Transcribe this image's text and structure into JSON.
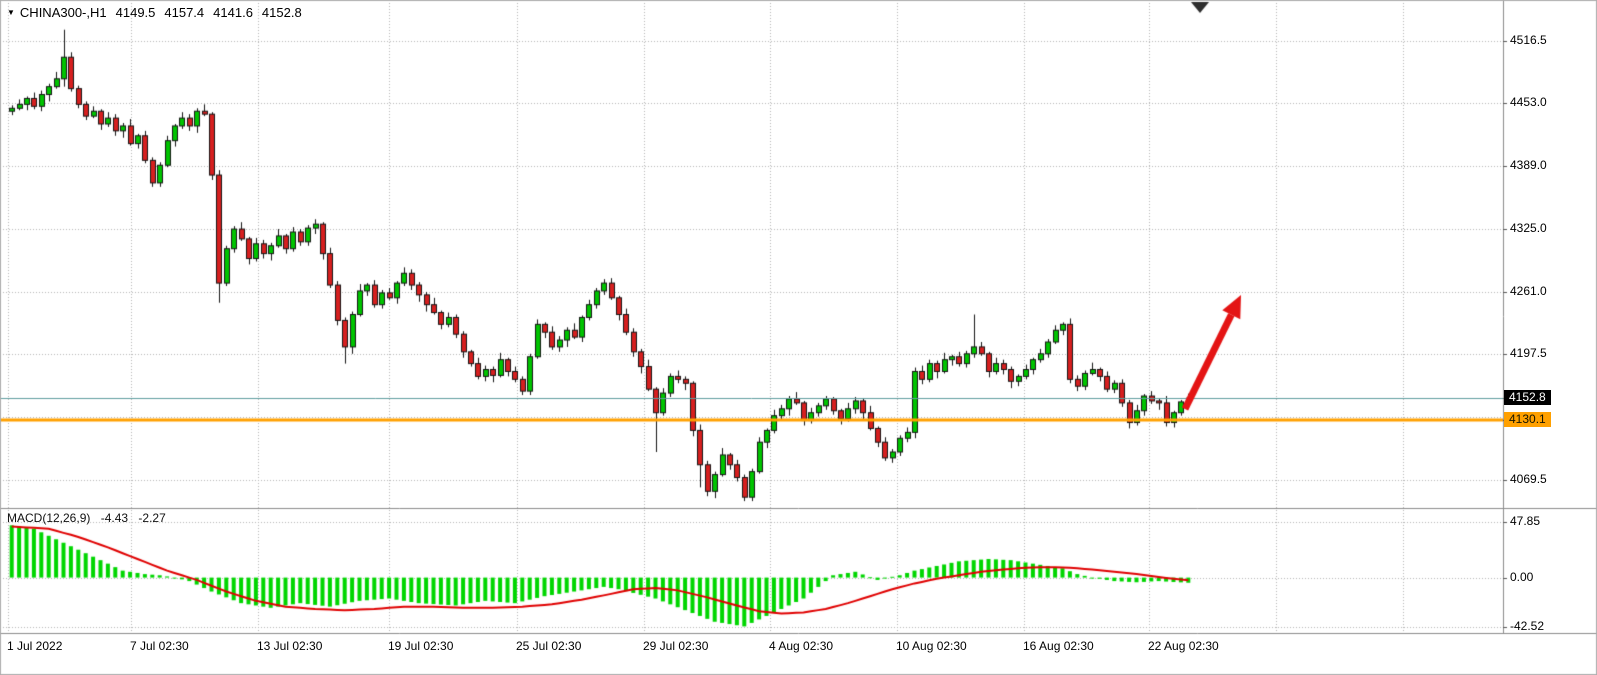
{
  "header": {
    "collapse_icon": "▼",
    "title": "CHINA300-,H1",
    "open": "4149.5",
    "high": "4157.4",
    "low": "4141.6",
    "close": "4152.8"
  },
  "decor": {
    "shift_marker_color": "#2e2e2e"
  },
  "chart_data": {
    "type": "candlestick",
    "symbol": "CHINA300-",
    "timeframe": "H1",
    "title": "CHINA300-,H1",
    "ohlc_current": {
      "open": 4149.5,
      "high": 4157.4,
      "low": 4141.6,
      "close": 4152.8
    },
    "price_axis_ticks": [
      "4516.5",
      "4453.0",
      "4389.0",
      "4325.0",
      "4261.0",
      "4197.5",
      "4069.5"
    ],
    "price_grid": [
      4516.5,
      4453.0,
      4389.0,
      4325.0,
      4261.0,
      4197.5,
      4134.0,
      4069.5
    ],
    "ylim": [
      4043,
      4558
    ],
    "bid_line": {
      "price": 4152.8,
      "label": "4152.8"
    },
    "hline": {
      "price": 4130.1,
      "label": "4130.1",
      "color": "#ffa000",
      "thickness": 3
    },
    "time_ticks": [
      {
        "label": "1 Jul 2022",
        "pos": 0
      },
      {
        "label": "7 Jul 02:30",
        "pos": 0.1039
      },
      {
        "label": "13 Jul 02:30",
        "pos": 0.2111
      },
      {
        "label": "19 Jul 02:30",
        "pos": 0.3218
      },
      {
        "label": "25 Jul 02:30",
        "pos": 0.4299
      },
      {
        "label": "29 Jul 02:30",
        "pos": 0.5372
      },
      {
        "label": "4 Aug 02:30",
        "pos": 0.6436
      },
      {
        "label": "10 Aug 02:30",
        "pos": 0.7508
      },
      {
        "label": "16 Aug 02:30",
        "pos": 0.8581
      },
      {
        "label": "22 Aug 02:30",
        "pos": 0.9637
      }
    ],
    "future_grid_pos": [
      1.0709,
      1.1782
    ],
    "colors": {
      "background": "#ffffff",
      "grid": "#b4b4b4",
      "up": "#00c400",
      "down": "#d61f1f",
      "outline": "#141414",
      "wick": "#141414",
      "hist": "#00d600",
      "signal": "#e00000",
      "bid_line": "#5f9ea0",
      "separator": "#8c8c8c",
      "axis_text": "#000000"
    },
    "candles": [
      [
        4445,
        4451,
        4441,
        4448
      ],
      [
        4448,
        4457,
        4446,
        4452
      ],
      [
        4452,
        4460,
        4446,
        4458
      ],
      [
        4458,
        4464,
        4447,
        4450
      ],
      [
        4450,
        4466,
        4445,
        4462
      ],
      [
        4462,
        4473,
        4455,
        4470
      ],
      [
        4470,
        4485,
        4468,
        4478
      ],
      [
        4478,
        4528,
        4470,
        4500
      ],
      [
        4500,
        4505,
        4465,
        4468
      ],
      [
        4468,
        4471,
        4448,
        4452
      ],
      [
        4452,
        4455,
        4436,
        4440
      ],
      [
        4440,
        4450,
        4438,
        4445
      ],
      [
        4445,
        4447,
        4426,
        4432
      ],
      [
        4432,
        4444,
        4429,
        4438
      ],
      [
        4438,
        4442,
        4420,
        4425
      ],
      [
        4425,
        4433,
        4418,
        4430
      ],
      [
        4430,
        4437,
        4410,
        4412
      ],
      [
        4412,
        4422,
        4407,
        4420
      ],
      [
        4420,
        4425,
        4392,
        4395
      ],
      [
        4395,
        4398,
        4368,
        4372
      ],
      [
        4372,
        4393,
        4368,
        4390
      ],
      [
        4390,
        4420,
        4388,
        4415
      ],
      [
        4415,
        4432,
        4409,
        4430
      ],
      [
        4430,
        4444,
        4427,
        4438
      ],
      [
        4438,
        4442,
        4425,
        4430
      ],
      [
        4430,
        4448,
        4423,
        4445
      ],
      [
        4445,
        4452,
        4440,
        4442
      ],
      [
        4442,
        4444,
        4375,
        4380
      ],
      [
        4380,
        4385,
        4250,
        4270
      ],
      [
        4270,
        4308,
        4267,
        4305
      ],
      [
        4305,
        4328,
        4301,
        4325
      ],
      [
        4325,
        4332,
        4313,
        4315
      ],
      [
        4315,
        4317,
        4289,
        4295
      ],
      [
        4295,
        4316,
        4292,
        4310
      ],
      [
        4310,
        4314,
        4295,
        4300
      ],
      [
        4300,
        4311,
        4293,
        4308
      ],
      [
        4308,
        4325,
        4306,
        4318
      ],
      [
        4318,
        4320,
        4300,
        4305
      ],
      [
        4305,
        4327,
        4302,
        4322
      ],
      [
        4322,
        4325,
        4308,
        4312
      ],
      [
        4312,
        4329,
        4308,
        4326
      ],
      [
        4326,
        4335,
        4320,
        4330
      ],
      [
        4330,
        4332,
        4294,
        4300
      ],
      [
        4300,
        4306,
        4265,
        4268
      ],
      [
        4268,
        4272,
        4227,
        4232
      ],
      [
        4232,
        4235,
        4188,
        4205
      ],
      [
        4205,
        4241,
        4198,
        4238
      ],
      [
        4238,
        4269,
        4236,
        4262
      ],
      [
        4262,
        4270,
        4257,
        4268
      ],
      [
        4268,
        4273,
        4245,
        4248
      ],
      [
        4248,
        4263,
        4244,
        4260
      ],
      [
        4260,
        4265,
        4253,
        4255
      ],
      [
        4255,
        4272,
        4249,
        4270
      ],
      [
        4270,
        4286,
        4267,
        4280
      ],
      [
        4280,
        4284,
        4263,
        4268
      ],
      [
        4268,
        4271,
        4251,
        4258
      ],
      [
        4258,
        4261,
        4241,
        4248
      ],
      [
        4248,
        4255,
        4238,
        4240
      ],
      [
        4240,
        4242,
        4223,
        4228
      ],
      [
        4228,
        4240,
        4225,
        4235
      ],
      [
        4235,
        4238,
        4214,
        4218
      ],
      [
        4218,
        4221,
        4194,
        4200
      ],
      [
        4200,
        4202,
        4185,
        4188
      ],
      [
        4188,
        4194,
        4172,
        4175
      ],
      [
        4175,
        4186,
        4170,
        4182
      ],
      [
        4182,
        4185,
        4169,
        4176
      ],
      [
        4176,
        4199,
        4174,
        4192
      ],
      [
        4192,
        4194,
        4175,
        4180
      ],
      [
        4180,
        4185,
        4169,
        4172
      ],
      [
        4172,
        4175,
        4156,
        4160
      ],
      [
        4160,
        4198,
        4156,
        4195
      ],
      [
        4195,
        4233,
        4193,
        4228
      ],
      [
        4228,
        4230,
        4214,
        4220
      ],
      [
        4220,
        4226,
        4202,
        4205
      ],
      [
        4205,
        4216,
        4200,
        4212
      ],
      [
        4212,
        4225,
        4205,
        4222
      ],
      [
        4222,
        4229,
        4213,
        4215
      ],
      [
        4215,
        4237,
        4210,
        4235
      ],
      [
        4235,
        4253,
        4232,
        4248
      ],
      [
        4248,
        4265,
        4244,
        4262
      ],
      [
        4262,
        4274,
        4258,
        4270
      ],
      [
        4270,
        4275,
        4253,
        4255
      ],
      [
        4255,
        4257,
        4232,
        4238
      ],
      [
        4238,
        4244,
        4217,
        4220
      ],
      [
        4220,
        4224,
        4195,
        4200
      ],
      [
        4200,
        4203,
        4178,
        4185
      ],
      [
        4185,
        4192,
        4160,
        4162
      ],
      [
        4162,
        4164,
        4098,
        4138
      ],
      [
        4138,
        4163,
        4135,
        4158
      ],
      [
        4158,
        4178,
        4154,
        4175
      ],
      [
        4175,
        4181,
        4168,
        4172
      ],
      [
        4172,
        4175,
        4161,
        4168
      ],
      [
        4168,
        4170,
        4114,
        4120
      ],
      [
        4120,
        4126,
        4062,
        4085
      ],
      [
        4085,
        4089,
        4053,
        4058
      ],
      [
        4058,
        4078,
        4051,
        4075
      ],
      [
        4075,
        4102,
        4073,
        4095
      ],
      [
        4095,
        4097,
        4080,
        4085
      ],
      [
        4085,
        4090,
        4068,
        4072
      ],
      [
        4072,
        4075,
        4048,
        4052
      ],
      [
        4052,
        4081,
        4048,
        4078
      ],
      [
        4078,
        4113,
        4076,
        4108
      ],
      [
        4108,
        4122,
        4102,
        4120
      ],
      [
        4120,
        4141,
        4117,
        4135
      ],
      [
        4135,
        4146,
        4130,
        4142
      ],
      [
        4142,
        4155,
        4135,
        4152
      ],
      [
        4152,
        4159,
        4146,
        4148
      ],
      [
        4148,
        4150,
        4125,
        4130
      ],
      [
        4130,
        4143,
        4127,
        4138
      ],
      [
        4138,
        4148,
        4134,
        4145
      ],
      [
        4145,
        4155,
        4141,
        4152
      ],
      [
        4152,
        4154,
        4136,
        4140
      ],
      [
        4140,
        4142,
        4126,
        4132
      ],
      [
        4132,
        4148,
        4129,
        4142
      ],
      [
        4142,
        4154,
        4137,
        4150
      ],
      [
        4150,
        4153,
        4131,
        4138
      ],
      [
        4138,
        4145,
        4120,
        4122
      ],
      [
        4122,
        4124,
        4103,
        4108
      ],
      [
        4108,
        4113,
        4089,
        4092
      ],
      [
        4092,
        4101,
        4087,
        4098
      ],
      [
        4098,
        4115,
        4094,
        4112
      ],
      [
        4112,
        4123,
        4108,
        4118
      ],
      [
        4118,
        4184,
        4112,
        4180
      ],
      [
        4180,
        4186,
        4167,
        4172
      ],
      [
        4172,
        4192,
        4169,
        4188
      ],
      [
        4188,
        4191,
        4173,
        4180
      ],
      [
        4180,
        4199,
        4178,
        4192
      ],
      [
        4192,
        4197,
        4186,
        4195
      ],
      [
        4195,
        4200,
        4185,
        4188
      ],
      [
        4188,
        4201,
        4184,
        4198
      ],
      [
        4198,
        4238,
        4194,
        4205
      ],
      [
        4205,
        4210,
        4196,
        4198
      ],
      [
        4198,
        4200,
        4174,
        4180
      ],
      [
        4180,
        4194,
        4177,
        4188
      ],
      [
        4188,
        4192,
        4177,
        4182
      ],
      [
        4182,
        4185,
        4163,
        4170
      ],
      [
        4170,
        4177,
        4165,
        4175
      ],
      [
        4175,
        4187,
        4172,
        4182
      ],
      [
        4182,
        4194,
        4177,
        4192
      ],
      [
        4192,
        4203,
        4189,
        4198
      ],
      [
        4198,
        4213,
        4194,
        4210
      ],
      [
        4210,
        4227,
        4208,
        4222
      ],
      [
        4222,
        4230,
        4217,
        4228
      ],
      [
        4228,
        4234,
        4168,
        4172
      ],
      [
        4172,
        4176,
        4160,
        4165
      ],
      [
        4165,
        4181,
        4161,
        4178
      ],
      [
        4178,
        4189,
        4176,
        4182
      ],
      [
        4182,
        4184,
        4170,
        4175
      ],
      [
        4175,
        4180,
        4159,
        4162
      ],
      [
        4162,
        4171,
        4158,
        4168
      ],
      [
        4168,
        4172,
        4144,
        4148
      ],
      [
        4148,
        4151,
        4122,
        4128
      ],
      [
        4128,
        4146,
        4125,
        4140
      ],
      [
        4140,
        4157,
        4135,
        4155
      ],
      [
        4155,
        4160,
        4147,
        4150
      ],
      [
        4150,
        4153,
        4141,
        4148
      ],
      [
        4148,
        4155,
        4124,
        4128
      ],
      [
        4128,
        4140,
        4123,
        4138
      ],
      [
        4138,
        4151,
        4135,
        4149
      ],
      [
        4149.5,
        4157.4,
        4141.6,
        4152.8
      ]
    ],
    "macd": {
      "name": "MACD(12,26,9)",
      "main_display": "-4.43",
      "signal_display": "-2.27",
      "axis_ticks": [
        "47.85",
        "0.00",
        "-42.52"
      ],
      "ylim": [
        -47,
        52
      ],
      "histogram": [
        45,
        44,
        43,
        42,
        39,
        36,
        33,
        30,
        27,
        24,
        21,
        18,
        15,
        12,
        9,
        6,
        5,
        4,
        3,
        2.5,
        2,
        1,
        0,
        -1.5,
        -3,
        -6,
        -9,
        -12,
        -14.5,
        -17,
        -19.5,
        -22,
        -23,
        -24,
        -25,
        -26,
        -25,
        -24,
        -23,
        -22,
        -22.8,
        -23.5,
        -24.2,
        -25,
        -23.8,
        -22.5,
        -21.2,
        -20,
        -19.5,
        -19,
        -18.5,
        -18,
        -19,
        -20,
        -21,
        -22,
        -22.4,
        -22.8,
        -23.2,
        -23.6,
        -24,
        -23,
        -22,
        -21,
        -20,
        -20.5,
        -21,
        -21.5,
        -22,
        -20.5,
        -19,
        -17.5,
        -16,
        -15,
        -14,
        -13,
        -12,
        -11,
        -10,
        -9,
        -8,
        -9,
        -10,
        -11.6,
        -13.2,
        -14.8,
        -16.4,
        -18,
        -20.5,
        -23,
        -25.5,
        -28,
        -30.5,
        -33,
        -35.5,
        -38,
        -39,
        -40,
        -41,
        -42,
        -39,
        -36,
        -33,
        -30,
        -27,
        -24,
        -21,
        -18,
        -13,
        -8,
        -3,
        2,
        3,
        4,
        5,
        2.7,
        0.3,
        -2,
        -0.7,
        0.7,
        2,
        4,
        6,
        7.3,
        8.7,
        10,
        11.3,
        12.7,
        14,
        14.5,
        15,
        15.5,
        16,
        15.7,
        15.3,
        15,
        14,
        13,
        12,
        11,
        10,
        9,
        8,
        5.5,
        3,
        1.5,
        0,
        -1,
        -2,
        -3,
        -3.3,
        -3.7,
        -4,
        -3.7,
        -3.3,
        -3,
        -3.4,
        -3.8,
        -4.1,
        -4.43
      ],
      "signal": [
        44,
        43.6,
        43.2,
        42.8,
        42.4,
        42,
        40.3,
        38.5,
        36.8,
        35,
        32.8,
        30.5,
        28.3,
        26,
        23.5,
        21,
        18.5,
        16,
        13.5,
        11,
        8.5,
        6,
        4,
        2,
        0,
        -2,
        -4.5,
        -7,
        -9.5,
        -12,
        -14,
        -16,
        -18,
        -20,
        -21.3,
        -22.5,
        -23.8,
        -25,
        -25.5,
        -26,
        -26.5,
        -27,
        -27.3,
        -27.5,
        -27.8,
        -28,
        -27.8,
        -27.5,
        -27.3,
        -27,
        -26.5,
        -26,
        -25.5,
        -25,
        -25,
        -25,
        -25,
        -25,
        -25.3,
        -25.5,
        -25.8,
        -26,
        -26,
        -26,
        -26,
        -26,
        -25.8,
        -25.5,
        -25.3,
        -25,
        -24.5,
        -24,
        -23.5,
        -23,
        -22,
        -21,
        -20,
        -19,
        -17.8,
        -16.5,
        -15.3,
        -14,
        -12.7,
        -11.3,
        -10,
        -9.7,
        -9.3,
        -9,
        -9.7,
        -10.3,
        -11,
        -12.5,
        -14,
        -15.5,
        -17,
        -18.8,
        -20.5,
        -22.3,
        -24,
        -25.7,
        -27.3,
        -29,
        -29.7,
        -30.3,
        -31,
        -30.7,
        -30.3,
        -30,
        -29,
        -28,
        -27,
        -25.3,
        -23.7,
        -22,
        -20,
        -18,
        -16,
        -14,
        -12,
        -10,
        -8.3,
        -6.7,
        -5,
        -3.7,
        -2.3,
        -1,
        0,
        1,
        2,
        3,
        4,
        5,
        5.7,
        6.3,
        7,
        7.5,
        8,
        8.5,
        8.7,
        8.8,
        9,
        8.8,
        8.7,
        8.5,
        8,
        7.5,
        7,
        6.3,
        5.7,
        5,
        4.3,
        3.7,
        3,
        2.2,
        1.3,
        0.5,
        -0.3,
        -1,
        -1.6,
        -2.27
      ]
    },
    "annotations": [
      {
        "type": "arrow",
        "color": "#e41414",
        "from": [
          1185,
          409
        ],
        "to": [
          1241,
          295
        ]
      }
    ]
  }
}
